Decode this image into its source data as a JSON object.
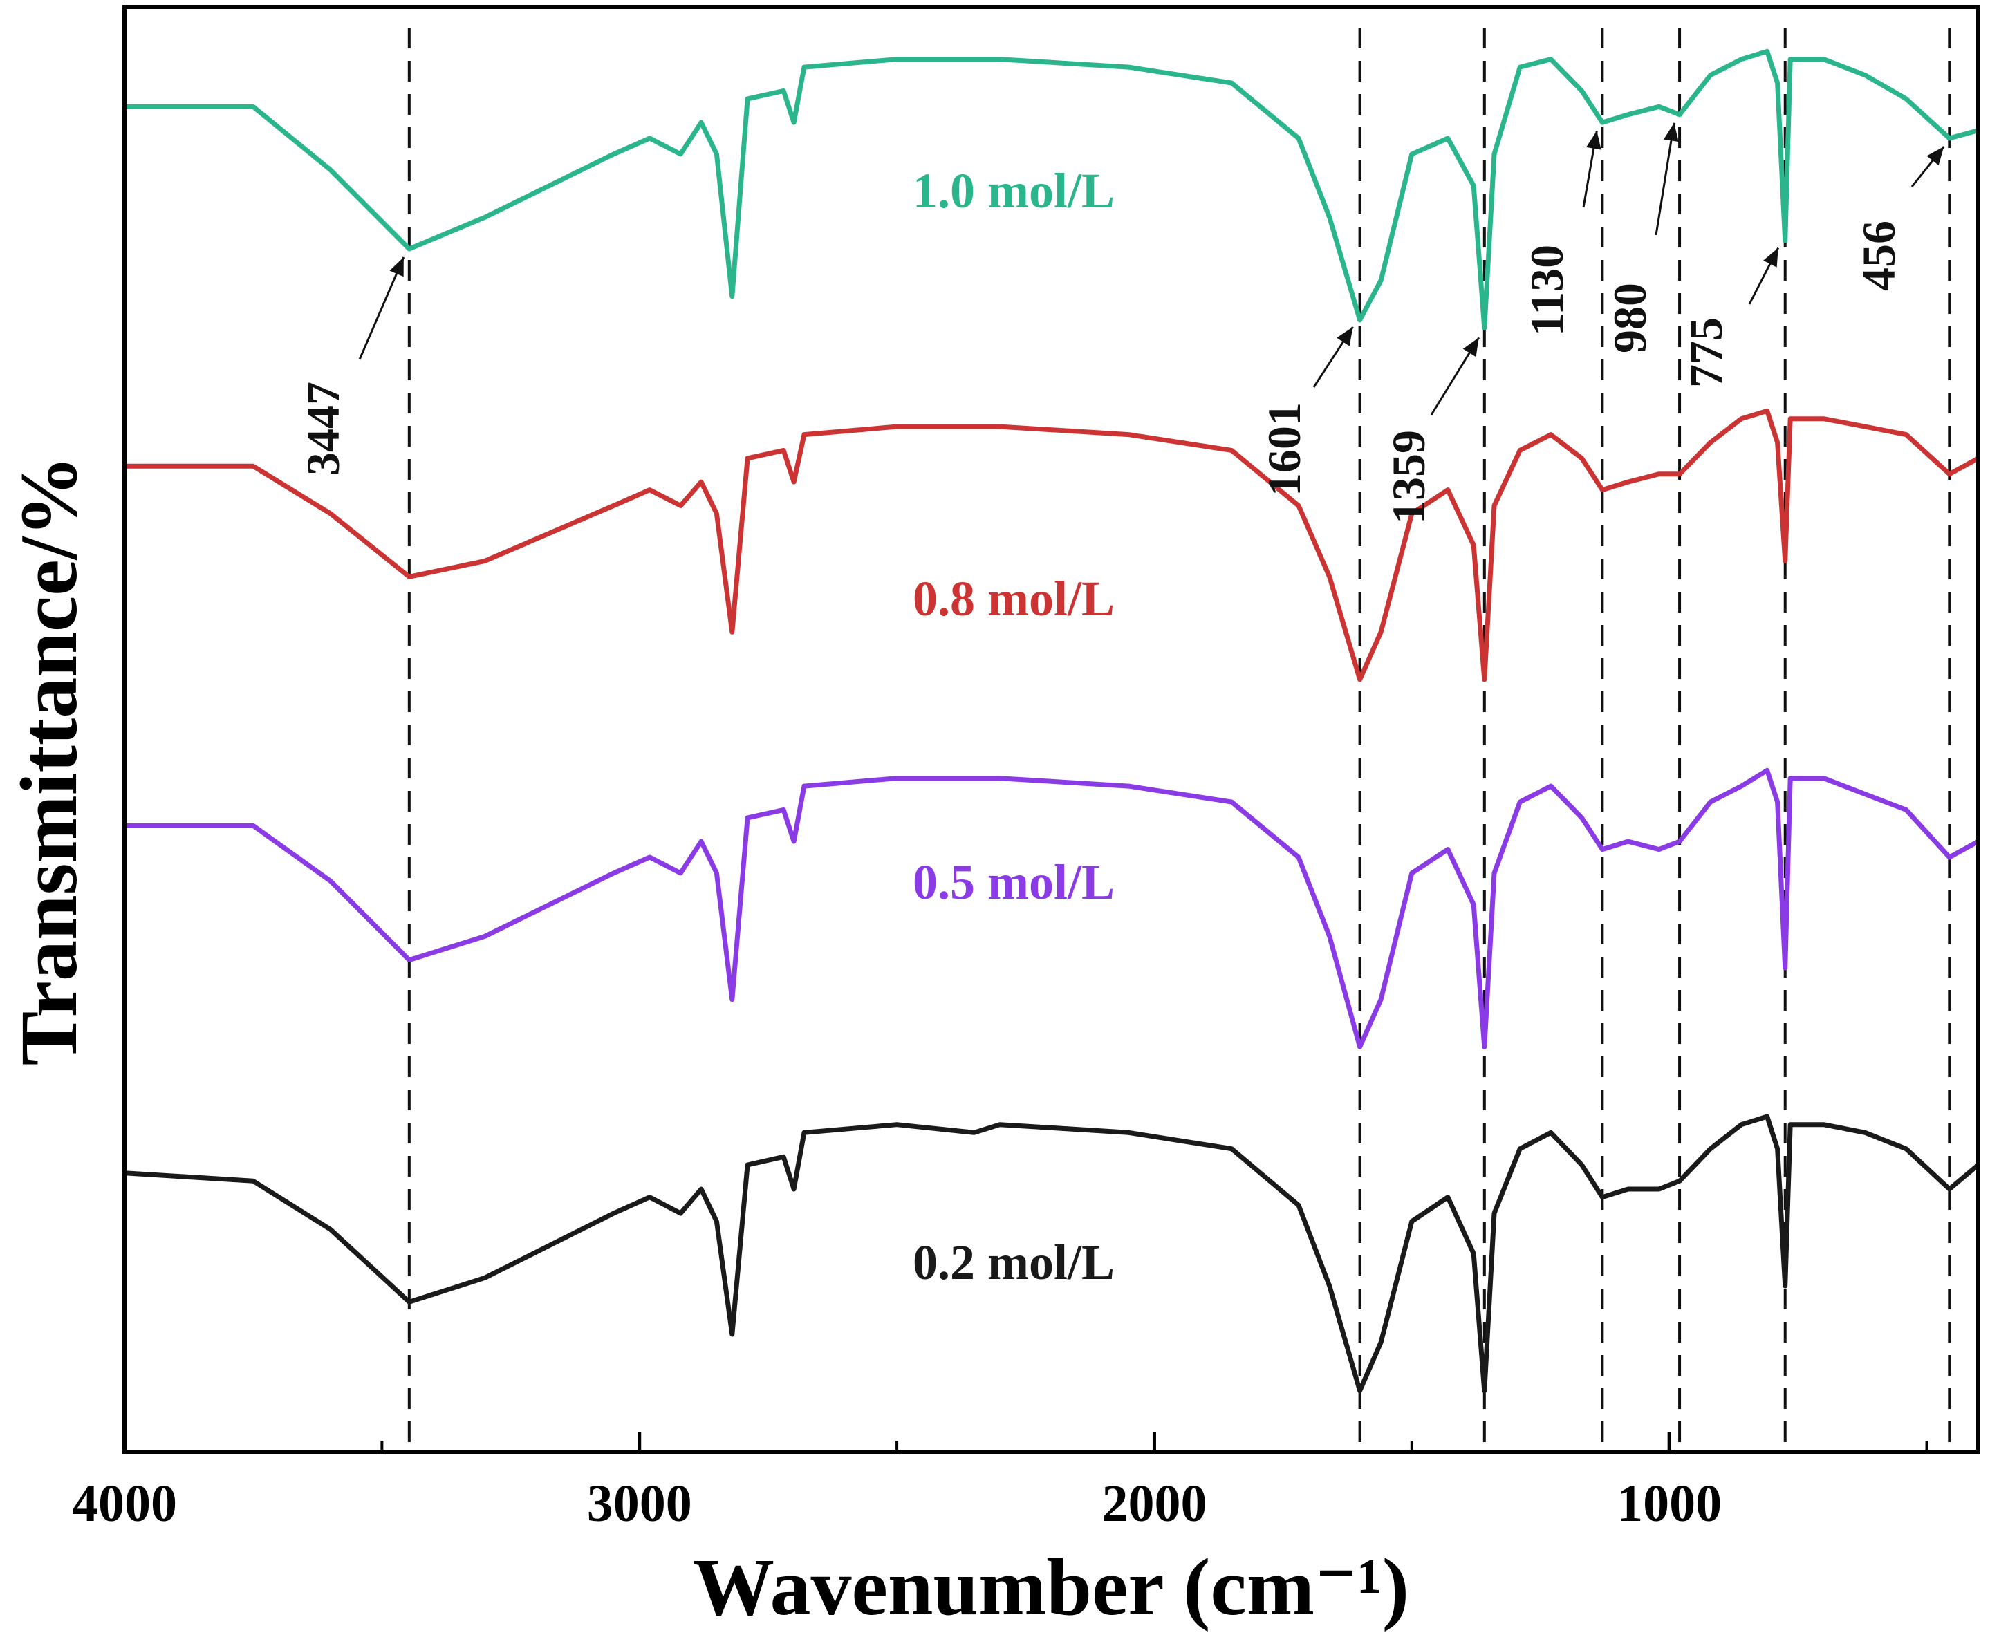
{
  "chart_data": {
    "type": "line",
    "title": "",
    "xlabel": "Wavenumber (cm⁻¹)",
    "ylabel": "Transmittance/%",
    "xlim": [
      4000,
      400
    ],
    "x_reversed": true,
    "grid": false,
    "y_ticks_shown": false,
    "x_ticks": [
      4000,
      3000,
      2000,
      1000
    ],
    "x_tick_labels": [
      "4000",
      "3000",
      "2000",
      "1000"
    ],
    "reference_lines": [
      3447,
      1601,
      1359,
      1130,
      980,
      775,
      456
    ],
    "peak_labels": [
      {
        "label": "3447",
        "x": 3447,
        "series": "1.0 mol/L"
      },
      {
        "label": "1601",
        "x": 1601,
        "series": "1.0 mol/L"
      },
      {
        "label": "1359",
        "x": 1359,
        "series": "1.0 mol/L"
      },
      {
        "label": "1130",
        "x": 1130,
        "series": "1.0 mol/L"
      },
      {
        "label": "980",
        "x": 980,
        "series": "1.0 mol/L"
      },
      {
        "label": "775",
        "x": 775,
        "series": "1.0 mol/L"
      },
      {
        "label": "456",
        "x": 456,
        "series": "1.0 mol/L"
      }
    ],
    "series": [
      {
        "name": "1.0 mol/L",
        "color": "#2bb58c",
        "points": [
          [
            4000,
            0.9
          ],
          [
            3750,
            0.9
          ],
          [
            3600,
            0.82
          ],
          [
            3447,
            0.72
          ],
          [
            3300,
            0.76
          ],
          [
            3050,
            0.84
          ],
          [
            2980,
            0.86
          ],
          [
            2920,
            0.84
          ],
          [
            2880,
            0.88
          ],
          [
            2850,
            0.84
          ],
          [
            2820,
            0.66
          ],
          [
            2790,
            0.91
          ],
          [
            2720,
            0.92
          ],
          [
            2700,
            0.88
          ],
          [
            2680,
            0.95
          ],
          [
            2500,
            0.96
          ],
          [
            2300,
            0.96
          ],
          [
            2050,
            0.95
          ],
          [
            1850,
            0.93
          ],
          [
            1720,
            0.86
          ],
          [
            1660,
            0.76
          ],
          [
            1601,
            0.63
          ],
          [
            1560,
            0.68
          ],
          [
            1500,
            0.84
          ],
          [
            1430,
            0.86
          ],
          [
            1380,
            0.8
          ],
          [
            1359,
            0.62
          ],
          [
            1340,
            0.84
          ],
          [
            1290,
            0.95
          ],
          [
            1230,
            0.96
          ],
          [
            1170,
            0.92
          ],
          [
            1130,
            0.88
          ],
          [
            1080,
            0.89
          ],
          [
            1020,
            0.9
          ],
          [
            980,
            0.89
          ],
          [
            920,
            0.94
          ],
          [
            860,
            0.96
          ],
          [
            810,
            0.97
          ],
          [
            790,
            0.93
          ],
          [
            775,
            0.73
          ],
          [
            765,
            0.96
          ],
          [
            700,
            0.96
          ],
          [
            620,
            0.94
          ],
          [
            540,
            0.91
          ],
          [
            456,
            0.86
          ],
          [
            400,
            0.87
          ]
        ]
      },
      {
        "name": "0.8 mol/L",
        "color": "#cc3333",
        "points": [
          [
            4000,
            0.9
          ],
          [
            3750,
            0.9
          ],
          [
            3600,
            0.84
          ],
          [
            3447,
            0.76
          ],
          [
            3300,
            0.78
          ],
          [
            3050,
            0.85
          ],
          [
            2980,
            0.87
          ],
          [
            2920,
            0.85
          ],
          [
            2880,
            0.88
          ],
          [
            2850,
            0.84
          ],
          [
            2820,
            0.69
          ],
          [
            2790,
            0.91
          ],
          [
            2720,
            0.92
          ],
          [
            2700,
            0.88
          ],
          [
            2680,
            0.94
          ],
          [
            2500,
            0.95
          ],
          [
            2300,
            0.95
          ],
          [
            2050,
            0.94
          ],
          [
            1850,
            0.92
          ],
          [
            1720,
            0.85
          ],
          [
            1660,
            0.76
          ],
          [
            1601,
            0.63
          ],
          [
            1560,
            0.69
          ],
          [
            1500,
            0.84
          ],
          [
            1430,
            0.87
          ],
          [
            1380,
            0.8
          ],
          [
            1359,
            0.63
          ],
          [
            1340,
            0.85
          ],
          [
            1290,
            0.92
          ],
          [
            1230,
            0.94
          ],
          [
            1170,
            0.91
          ],
          [
            1130,
            0.87
          ],
          [
            1080,
            0.88
          ],
          [
            1020,
            0.89
          ],
          [
            980,
            0.89
          ],
          [
            920,
            0.93
          ],
          [
            860,
            0.96
          ],
          [
            810,
            0.97
          ],
          [
            790,
            0.93
          ],
          [
            775,
            0.78
          ],
          [
            765,
            0.96
          ],
          [
            700,
            0.96
          ],
          [
            620,
            0.95
          ],
          [
            540,
            0.94
          ],
          [
            456,
            0.89
          ],
          [
            400,
            0.91
          ]
        ]
      },
      {
        "name": "0.5 mol/L",
        "color": "#8a3be6",
        "points": [
          [
            4000,
            0.9
          ],
          [
            3750,
            0.9
          ],
          [
            3600,
            0.83
          ],
          [
            3447,
            0.73
          ],
          [
            3300,
            0.76
          ],
          [
            3050,
            0.84
          ],
          [
            2980,
            0.86
          ],
          [
            2920,
            0.84
          ],
          [
            2880,
            0.88
          ],
          [
            2850,
            0.84
          ],
          [
            2820,
            0.68
          ],
          [
            2790,
            0.91
          ],
          [
            2720,
            0.92
          ],
          [
            2700,
            0.88
          ],
          [
            2680,
            0.95
          ],
          [
            2500,
            0.96
          ],
          [
            2300,
            0.96
          ],
          [
            2050,
            0.95
          ],
          [
            1850,
            0.93
          ],
          [
            1720,
            0.86
          ],
          [
            1660,
            0.76
          ],
          [
            1601,
            0.62
          ],
          [
            1560,
            0.68
          ],
          [
            1500,
            0.84
          ],
          [
            1430,
            0.87
          ],
          [
            1380,
            0.8
          ],
          [
            1359,
            0.62
          ],
          [
            1340,
            0.84
          ],
          [
            1290,
            0.93
          ],
          [
            1230,
            0.95
          ],
          [
            1170,
            0.91
          ],
          [
            1130,
            0.87
          ],
          [
            1080,
            0.88
          ],
          [
            1020,
            0.87
          ],
          [
            980,
            0.88
          ],
          [
            920,
            0.93
          ],
          [
            860,
            0.95
          ],
          [
            810,
            0.97
          ],
          [
            790,
            0.93
          ],
          [
            775,
            0.72
          ],
          [
            765,
            0.96
          ],
          [
            700,
            0.96
          ],
          [
            620,
            0.94
          ],
          [
            540,
            0.92
          ],
          [
            456,
            0.86
          ],
          [
            400,
            0.88
          ]
        ]
      },
      {
        "name": "0.2 mol/L",
        "color": "#1a1a1a",
        "points": [
          [
            4000,
            0.9
          ],
          [
            3750,
            0.89
          ],
          [
            3600,
            0.83
          ],
          [
            3447,
            0.74
          ],
          [
            3300,
            0.77
          ],
          [
            3050,
            0.85
          ],
          [
            2980,
            0.87
          ],
          [
            2920,
            0.85
          ],
          [
            2880,
            0.88
          ],
          [
            2850,
            0.84
          ],
          [
            2820,
            0.7
          ],
          [
            2790,
            0.91
          ],
          [
            2720,
            0.92
          ],
          [
            2700,
            0.88
          ],
          [
            2680,
            0.95
          ],
          [
            2500,
            0.96
          ],
          [
            2350,
            0.95
          ],
          [
            2300,
            0.96
          ],
          [
            2050,
            0.95
          ],
          [
            1850,
            0.93
          ],
          [
            1720,
            0.86
          ],
          [
            1660,
            0.76
          ],
          [
            1601,
            0.63
          ],
          [
            1560,
            0.69
          ],
          [
            1500,
            0.84
          ],
          [
            1430,
            0.87
          ],
          [
            1380,
            0.8
          ],
          [
            1359,
            0.63
          ],
          [
            1340,
            0.85
          ],
          [
            1290,
            0.93
          ],
          [
            1230,
            0.95
          ],
          [
            1170,
            0.91
          ],
          [
            1130,
            0.87
          ],
          [
            1080,
            0.88
          ],
          [
            1020,
            0.88
          ],
          [
            980,
            0.89
          ],
          [
            920,
            0.93
          ],
          [
            860,
            0.96
          ],
          [
            810,
            0.97
          ],
          [
            790,
            0.93
          ],
          [
            775,
            0.76
          ],
          [
            765,
            0.96
          ],
          [
            700,
            0.96
          ],
          [
            620,
            0.95
          ],
          [
            540,
            0.93
          ],
          [
            456,
            0.88
          ],
          [
            400,
            0.91
          ]
        ]
      }
    ]
  }
}
